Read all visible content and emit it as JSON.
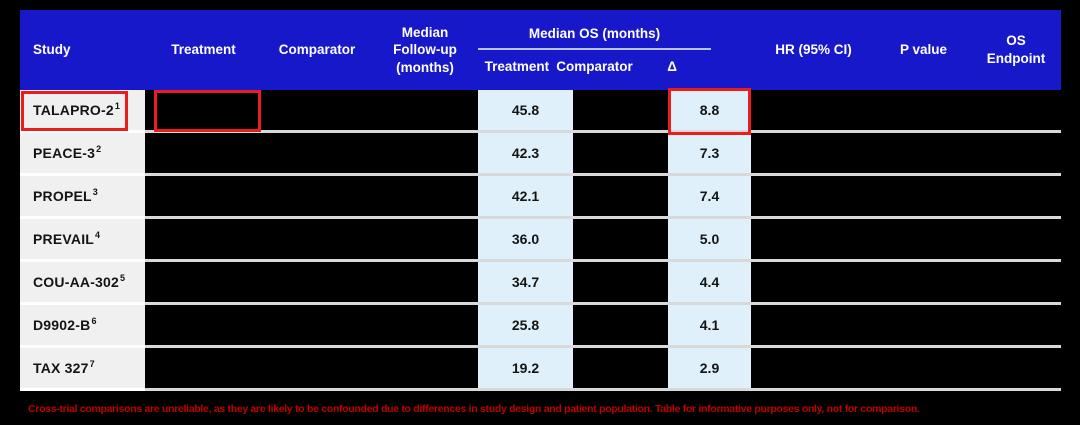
{
  "table": {
    "header": {
      "study": "Study",
      "treatment": "Treatment",
      "comparator": "Comparator",
      "median_followup": "Median\nFollow-up\n(months)",
      "median_os_group": "Median OS (months)",
      "os_sub_treatment": "Treatment",
      "os_sub_comparator": "Comparator",
      "os_sub_delta": "Δ",
      "hr": "HR (95% CI)",
      "p_value": "P value",
      "os_endpoint": "OS\nEndpoint"
    },
    "rows": [
      {
        "study": "TALAPRO-2",
        "ref": "1",
        "os_treatment": "45.8",
        "delta": "8.8",
        "highlighted": true
      },
      {
        "study": "PEACE-3",
        "ref": "2",
        "os_treatment": "42.3",
        "delta": "7.3",
        "highlighted": false
      },
      {
        "study": "PROPEL",
        "ref": "3",
        "os_treatment": "42.1",
        "delta": "7.4",
        "highlighted": false
      },
      {
        "study": "PREVAIL",
        "ref": "4",
        "os_treatment": "36.0",
        "delta": "5.0",
        "highlighted": false
      },
      {
        "study": "COU-AA-302",
        "ref": "5",
        "os_treatment": "34.7",
        "delta": "4.4",
        "highlighted": false
      },
      {
        "study": "D9902-B",
        "ref": "6",
        "os_treatment": "25.8",
        "delta": "4.1",
        "highlighted": false
      },
      {
        "study": "TAX 327",
        "ref": "7",
        "os_treatment": "19.2",
        "delta": "2.9",
        "highlighted": false
      }
    ],
    "redacted_note": "Treatment, Comparator, Median Follow-up, Median OS Comparator, HR (95% CI), P value and OS Endpoint cells are blacked out"
  },
  "footnote": "Cross-trial comparisons are unreliable, as they are likely to be confounded due to differences in study design and patient population. Table for informative purposes only, not for comparison.",
  "colors": {
    "page_background": "#000000",
    "header_background": "#1718C9",
    "study_cell_background": "#f1f0f1",
    "os_value_cell_background": "#dff0fa",
    "row_separator": "#d9d9d9",
    "highlight_box_red": "#ea1c1c",
    "footnote_red": "#c00000"
  },
  "chart_data": {
    "type": "table",
    "title": "",
    "columns": [
      "Study",
      "Treatment",
      "Comparator",
      "Median Follow-up (months)",
      "Median OS (months) Treatment",
      "Median OS (months) Comparator",
      "Median OS (months) Δ",
      "HR (95% CI)",
      "P value",
      "OS Endpoint"
    ],
    "rows": [
      [
        "TALAPRO-2 (1)",
        null,
        null,
        null,
        45.8,
        null,
        8.8,
        null,
        null,
        null
      ],
      [
        "PEACE-3 (2)",
        null,
        null,
        null,
        42.3,
        null,
        7.3,
        null,
        null,
        null
      ],
      [
        "PROPEL (3)",
        null,
        null,
        null,
        42.1,
        null,
        7.4,
        null,
        null,
        null
      ],
      [
        "PREVAIL (4)",
        null,
        null,
        null,
        36.0,
        null,
        5.0,
        null,
        null,
        null
      ],
      [
        "COU-AA-302 (5)",
        null,
        null,
        null,
        34.7,
        null,
        4.4,
        null,
        null,
        null
      ],
      [
        "D9902-B (6)",
        null,
        null,
        null,
        25.8,
        null,
        4.1,
        null,
        null,
        null
      ],
      [
        "TAX 327 (7)",
        null,
        null,
        null,
        19.2,
        null,
        2.9,
        null,
        null,
        null
      ]
    ],
    "highlighted_cells": [
      "TALAPRO-2 study name",
      "TALAPRO-2 treatment (redacted)",
      "TALAPRO-2 Δ = 8.8"
    ],
    "annotations": [
      "Cross-trial comparisons are unreliable, as they are likely to be confounded due to differences in study design and patient population. Table for informative purposes only, not for comparison."
    ]
  }
}
